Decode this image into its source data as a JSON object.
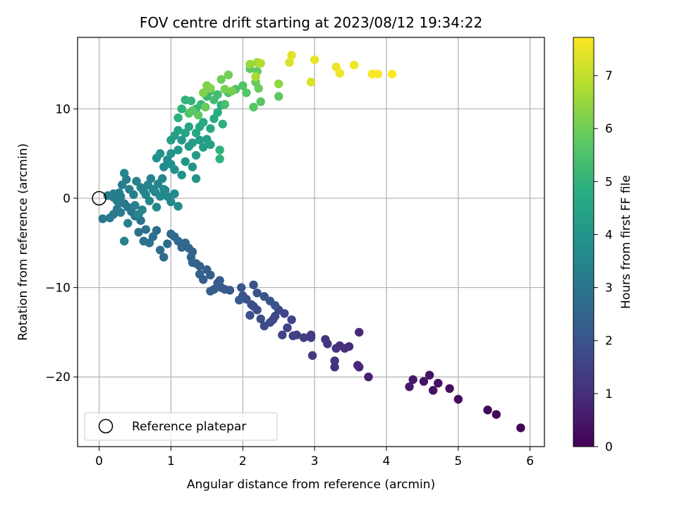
{
  "chart_data": {
    "type": "scatter",
    "title": "FOV centre drift starting at 2023/08/12 19:34:22",
    "xlabel": "Angular distance from reference (arcmin)",
    "ylabel": "Rotation from reference (arcmin)",
    "xlim": [
      -0.3,
      6.2
    ],
    "ylim": [
      -27.8,
      18.0
    ],
    "xticks": [
      0,
      1,
      2,
      3,
      4,
      5,
      6
    ],
    "yticks": [
      -20,
      -10,
      0,
      10
    ],
    "grid": true,
    "legend": {
      "placement": "lower-left",
      "entries": [
        "Reference platepar"
      ]
    },
    "colorbar": {
      "label": "Hours from first FF file",
      "colormap": "viridis",
      "range": [
        0,
        7.72
      ],
      "ticks": [
        0,
        1,
        2,
        3,
        4,
        5,
        6,
        7
      ]
    },
    "reference_point": {
      "x": 0,
      "y": 0
    },
    "series": [
      {
        "values": [
          [
            5.87,
            -25.7,
            0.05
          ],
          [
            5.53,
            -24.2,
            0.1
          ],
          [
            5.41,
            -23.7,
            0.15
          ],
          [
            5.0,
            -22.5,
            0.25
          ],
          [
            4.88,
            -21.3,
            0.3
          ],
          [
            4.72,
            -20.7,
            0.35
          ],
          [
            4.65,
            -21.5,
            0.38
          ],
          [
            4.6,
            -19.8,
            0.4
          ],
          [
            4.52,
            -20.5,
            0.45
          ],
          [
            4.37,
            -20.3,
            0.5
          ],
          [
            4.32,
            -21.1,
            0.55
          ],
          [
            3.75,
            -20.0,
            0.75
          ],
          [
            3.62,
            -18.9,
            0.8
          ],
          [
            3.6,
            -18.7,
            0.85
          ],
          [
            3.62,
            -15.0,
            0.9
          ],
          [
            3.48,
            -16.6,
            0.95
          ],
          [
            3.42,
            -16.8,
            1.0
          ],
          [
            3.35,
            -16.5,
            1.05
          ],
          [
            3.3,
            -16.8,
            1.1
          ],
          [
            3.28,
            -18.9,
            1.1
          ],
          [
            3.28,
            -18.2,
            1.15
          ],
          [
            3.18,
            -16.3,
            1.2
          ],
          [
            3.15,
            -15.8,
            1.25
          ],
          [
            2.97,
            -17.6,
            1.3
          ],
          [
            2.95,
            -15.6,
            1.35
          ],
          [
            2.95,
            -15.3,
            1.35
          ],
          [
            2.85,
            -15.6,
            1.4
          ],
          [
            2.75,
            -15.3,
            1.45
          ],
          [
            2.7,
            -15.4,
            1.5
          ],
          [
            2.62,
            -14.5,
            1.55
          ],
          [
            2.55,
            -15.3,
            1.55
          ],
          [
            2.68,
            -13.6,
            1.6
          ],
          [
            2.58,
            -12.9,
            1.6
          ],
          [
            2.5,
            -12.5,
            1.65
          ],
          [
            2.45,
            -13.2,
            1.7
          ],
          [
            2.42,
            -13.6,
            1.7
          ],
          [
            2.38,
            -13.9,
            1.75
          ],
          [
            2.3,
            -14.3,
            1.75
          ],
          [
            2.25,
            -13.5,
            1.8
          ],
          [
            2.2,
            -12.5,
            1.8
          ],
          [
            2.15,
            -12.1,
            1.85
          ],
          [
            2.12,
            -11.9,
            1.85
          ],
          [
            2.1,
            -13.1,
            1.9
          ],
          [
            2.05,
            -11.3,
            1.9
          ],
          [
            2.0,
            -10.9,
            1.95
          ],
          [
            2.15,
            -9.7,
            1.95
          ],
          [
            2.2,
            -10.6,
            2.0
          ],
          [
            2.3,
            -11.0,
            2.0
          ],
          [
            2.38,
            -11.5,
            2.05
          ],
          [
            2.45,
            -12.0,
            2.05
          ],
          [
            1.98,
            -10.0,
            2.1
          ],
          [
            1.95,
            -11.4,
            2.1
          ],
          [
            1.82,
            -10.3,
            2.15
          ],
          [
            1.75,
            -10.2,
            2.15
          ],
          [
            1.7,
            -10.0,
            2.2
          ],
          [
            1.68,
            -9.2,
            2.2
          ],
          [
            1.65,
            -9.5,
            2.25
          ],
          [
            1.6,
            -10.2,
            2.25
          ],
          [
            1.55,
            -10.4,
            2.3
          ],
          [
            1.55,
            -8.6,
            2.3
          ],
          [
            1.5,
            -8.0,
            2.35
          ],
          [
            1.45,
            -9.1,
            2.35
          ],
          [
            1.4,
            -8.5,
            2.4
          ],
          [
            1.4,
            -7.6,
            2.4
          ],
          [
            1.35,
            -7.3,
            2.45
          ],
          [
            1.3,
            -7.2,
            2.45
          ],
          [
            1.28,
            -6.6,
            2.5
          ],
          [
            1.3,
            -6.0,
            2.5
          ],
          [
            1.25,
            -5.6,
            2.55
          ],
          [
            1.2,
            -5.0,
            2.55
          ],
          [
            1.15,
            -5.5,
            2.6
          ],
          [
            1.1,
            -4.8,
            2.6
          ],
          [
            1.05,
            -4.3,
            2.65
          ],
          [
            1.0,
            -4.0,
            2.65
          ],
          [
            0.95,
            -5.1,
            2.7
          ],
          [
            0.9,
            -6.6,
            2.7
          ],
          [
            0.85,
            -5.8,
            2.75
          ],
          [
            0.8,
            -3.6,
            2.75
          ],
          [
            0.75,
            -4.3,
            2.8
          ],
          [
            0.7,
            -5.0,
            2.8
          ],
          [
            0.65,
            -3.5,
            2.85
          ],
          [
            0.62,
            -4.8,
            2.85
          ],
          [
            0.58,
            -2.5,
            2.9
          ],
          [
            0.55,
            -3.8,
            2.9
          ],
          [
            0.5,
            -2.0,
            2.95
          ],
          [
            0.45,
            -1.5,
            3.0
          ],
          [
            0.4,
            -1.0,
            3.0
          ],
          [
            0.35,
            -0.6,
            3.05
          ],
          [
            0.3,
            -0.4,
            3.05
          ],
          [
            0.25,
            -1.2,
            3.1
          ],
          [
            0.2,
            -1.8,
            3.1
          ],
          [
            0.15,
            -2.2,
            3.15
          ],
          [
            0.05,
            -2.3,
            3.15
          ],
          [
            0.12,
            0.3,
            3.2
          ],
          [
            0.2,
            0.1,
            3.2
          ],
          [
            0.28,
            0.6,
            3.25
          ],
          [
            0.32,
            1.5,
            3.25
          ],
          [
            0.38,
            2.1,
            3.3
          ],
          [
            0.42,
            1.0,
            3.3
          ],
          [
            0.48,
            0.4,
            3.35
          ],
          [
            0.52,
            1.9,
            3.35
          ],
          [
            0.58,
            1.2,
            3.4
          ],
          [
            0.62,
            0.8,
            3.4
          ],
          [
            0.68,
            1.5,
            3.45
          ],
          [
            0.72,
            2.2,
            3.45
          ],
          [
            0.78,
            0.7,
            3.5
          ],
          [
            0.82,
            1.6,
            3.5
          ],
          [
            0.88,
            2.2,
            3.55
          ],
          [
            0.92,
            0.9,
            3.55
          ],
          [
            0.95,
            0.2,
            3.6
          ],
          [
            1.0,
            -0.4,
            3.6
          ],
          [
            1.05,
            0.5,
            3.65
          ],
          [
            1.1,
            -0.9,
            3.65
          ],
          [
            0.3,
            -1.6,
            3.3
          ],
          [
            0.4,
            -2.8,
            3.35
          ],
          [
            0.5,
            -0.8,
            3.4
          ],
          [
            0.6,
            -1.3,
            3.45
          ],
          [
            0.7,
            -0.3,
            3.5
          ],
          [
            0.8,
            -1.0,
            3.55
          ],
          [
            0.35,
            -4.8,
            3.4
          ],
          [
            0.35,
            2.8,
            3.5
          ],
          [
            0.55,
            -1.8,
            3.45
          ],
          [
            0.65,
            0.4,
            3.5
          ],
          [
            0.75,
            1.0,
            3.55
          ],
          [
            0.85,
            0.2,
            3.6
          ],
          [
            0.9,
            1.0,
            3.6
          ],
          [
            0.2,
            0.5,
            3.3
          ],
          [
            0.3,
            0.2,
            3.25
          ],
          [
            0.25,
            -0.3,
            3.2
          ],
          [
            0.9,
            3.5,
            3.7
          ],
          [
            0.95,
            4.3,
            3.75
          ],
          [
            1.0,
            3.8,
            3.8
          ],
          [
            1.05,
            3.2,
            3.85
          ],
          [
            1.15,
            2.6,
            3.9
          ],
          [
            1.2,
            4.1,
            3.95
          ],
          [
            1.3,
            3.5,
            4.0
          ],
          [
            1.35,
            2.2,
            4.0
          ],
          [
            0.8,
            4.5,
            3.85
          ],
          [
            0.85,
            5.0,
            3.9
          ],
          [
            1.0,
            5.0,
            3.95
          ],
          [
            1.1,
            5.4,
            4.05
          ],
          [
            1.15,
            6.5,
            4.1
          ],
          [
            1.25,
            5.8,
            4.15
          ],
          [
            1.3,
            6.2,
            4.2
          ],
          [
            1.4,
            6.5,
            4.25
          ],
          [
            1.35,
            4.8,
            4.2
          ],
          [
            1.45,
            5.7,
            4.3
          ],
          [
            1.5,
            6.6,
            4.35
          ],
          [
            1.55,
            6.0,
            4.4
          ],
          [
            1.0,
            6.5,
            4.3
          ],
          [
            1.05,
            7.0,
            4.35
          ],
          [
            1.1,
            7.6,
            4.4
          ],
          [
            1.2,
            7.3,
            4.45
          ],
          [
            1.25,
            8.0,
            4.5
          ],
          [
            1.35,
            7.3,
            4.55
          ],
          [
            1.4,
            8.0,
            4.6
          ],
          [
            1.45,
            8.5,
            4.65
          ],
          [
            1.55,
            7.8,
            4.7
          ],
          [
            1.6,
            8.9,
            4.75
          ],
          [
            1.65,
            9.6,
            4.8
          ],
          [
            1.7,
            10.4,
            4.85
          ],
          [
            1.72,
            8.3,
            4.9
          ],
          [
            1.68,
            5.4,
            4.95
          ],
          [
            1.68,
            4.4,
            5.0
          ],
          [
            1.1,
            9.0,
            4.9
          ],
          [
            1.15,
            10.0,
            4.95
          ],
          [
            1.2,
            11.0,
            5.0
          ],
          [
            1.28,
            10.9,
            5.05
          ],
          [
            1.35,
            10.0,
            5.1
          ],
          [
            1.42,
            10.5,
            5.15
          ],
          [
            1.5,
            11.4,
            5.2
          ],
          [
            1.55,
            12.0,
            5.25
          ],
          [
            1.6,
            11.0,
            5.3
          ],
          [
            1.65,
            11.6,
            5.35
          ],
          [
            1.75,
            10.5,
            5.4
          ],
          [
            1.8,
            11.8,
            5.45
          ],
          [
            1.9,
            12.2,
            5.5
          ],
          [
            2.0,
            12.6,
            5.55
          ],
          [
            2.05,
            11.8,
            5.6
          ],
          [
            2.15,
            10.2,
            5.65
          ],
          [
            2.25,
            10.8,
            5.7
          ],
          [
            2.5,
            11.4,
            5.75
          ],
          [
            2.1,
            14.5,
            5.8
          ],
          [
            2.2,
            14.2,
            5.85
          ],
          [
            2.18,
            13.0,
            5.9
          ],
          [
            2.22,
            12.3,
            5.95
          ],
          [
            1.7,
            13.3,
            6.0
          ],
          [
            1.8,
            13.8,
            6.05
          ],
          [
            1.85,
            12.0,
            6.1
          ],
          [
            1.75,
            12.2,
            6.1
          ],
          [
            1.5,
            12.6,
            6.2
          ],
          [
            1.55,
            12.3,
            6.2
          ],
          [
            1.25,
            9.5,
            5.6
          ],
          [
            1.3,
            9.8,
            5.7
          ],
          [
            1.38,
            9.3,
            5.8
          ],
          [
            1.48,
            10.2,
            5.9
          ],
          [
            1.45,
            11.8,
            6.25
          ],
          [
            2.5,
            12.8,
            6.4
          ],
          [
            2.1,
            15.0,
            6.5
          ],
          [
            2.2,
            15.2,
            6.6
          ],
          [
            2.25,
            15.1,
            6.8
          ],
          [
            2.18,
            13.6,
            6.7
          ],
          [
            2.65,
            15.2,
            7.3
          ],
          [
            2.68,
            16.0,
            7.4
          ],
          [
            2.95,
            13.0,
            7.3
          ],
          [
            3.0,
            15.5,
            7.45
          ],
          [
            3.3,
            14.7,
            7.5
          ],
          [
            3.35,
            14.0,
            7.55
          ],
          [
            3.55,
            14.9,
            7.6
          ],
          [
            3.8,
            13.9,
            7.65
          ],
          [
            3.88,
            13.9,
            7.7
          ],
          [
            4.08,
            13.9,
            7.72
          ]
        ]
      }
    ]
  }
}
